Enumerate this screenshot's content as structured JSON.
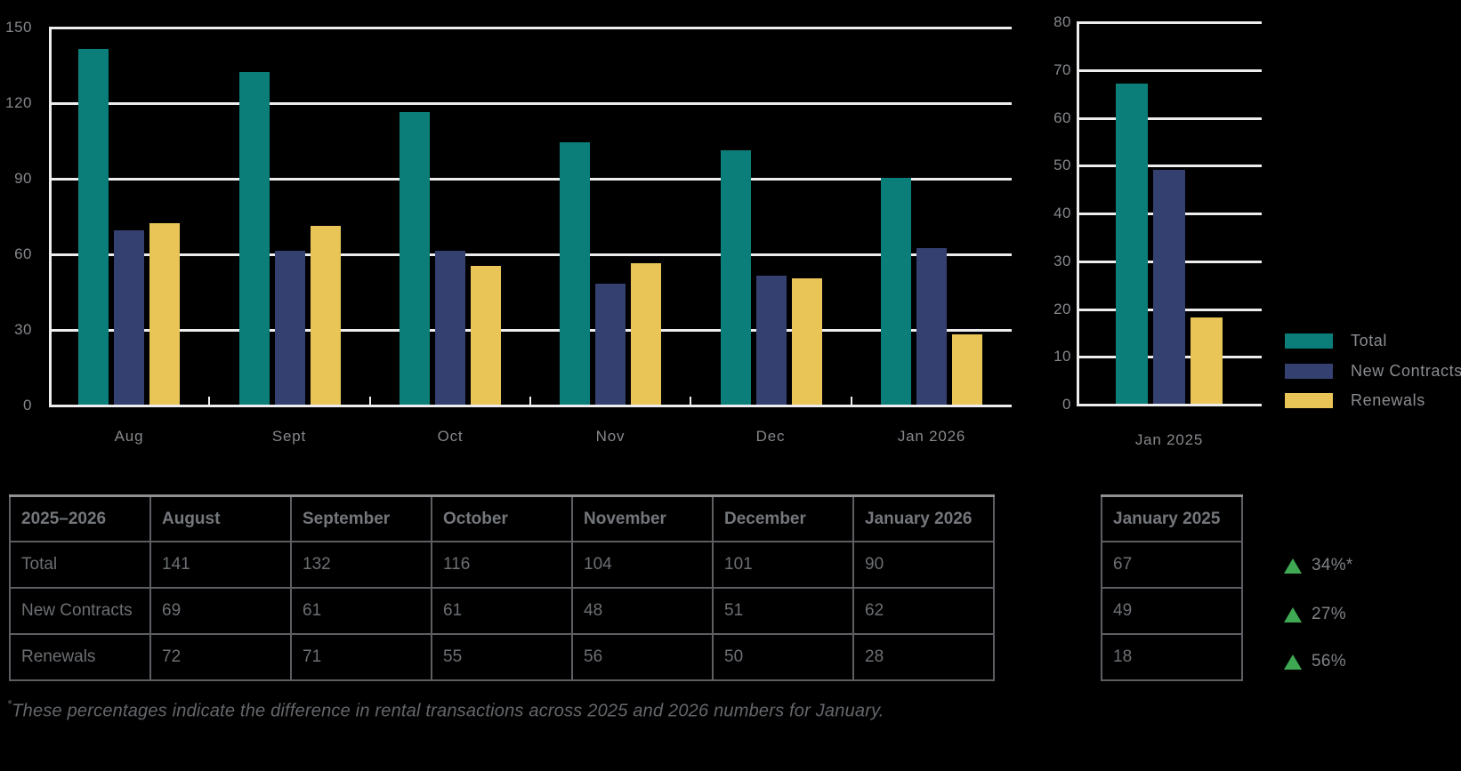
{
  "colors": {
    "total": "#0B7E7A",
    "new_contracts": "#344070",
    "renewals": "#E9C557",
    "grid": "#EDEDEF",
    "axis_text": "#85878B",
    "legend_text": "#8A8C90",
    "table_border": "#5C5E62",
    "table_header_text": "#74777B",
    "table_body_text": "#6C6F73",
    "stat_text": "#7F8286",
    "triangle_green": "#3EA952",
    "footnote_text": "#64676B",
    "background": "#000000"
  },
  "chart_data": [
    {
      "type": "bar",
      "title": "",
      "categories": [
        "Aug",
        "Sept",
        "Oct",
        "Nov",
        "Dec",
        "Jan 2026"
      ],
      "series": [
        {
          "name": "Total",
          "color_key": "total",
          "values": [
            141,
            132,
            116,
            104,
            101,
            90
          ]
        },
        {
          "name": "New Contracts",
          "color_key": "new_contracts",
          "values": [
            69,
            61,
            61,
            48,
            51,
            62
          ]
        },
        {
          "name": "Renewals",
          "color_key": "renewals",
          "values": [
            72,
            71,
            55,
            56,
            50,
            28
          ]
        }
      ],
      "ylim": [
        0,
        150
      ],
      "ystep": 30,
      "ytick_labels": [
        "150",
        "120",
        "90",
        "60",
        "30",
        "0"
      ],
      "grid": true,
      "legend_position": "none"
    },
    {
      "type": "bar",
      "title": "",
      "categories": [
        "Jan 2025"
      ],
      "series": [
        {
          "name": "Total",
          "color_key": "total",
          "values": [
            67
          ]
        },
        {
          "name": "New Contracts",
          "color_key": "new_contracts",
          "values": [
            49
          ]
        },
        {
          "name": "Renewals",
          "color_key": "renewals",
          "values": [
            18
          ]
        }
      ],
      "ylim": [
        0,
        80
      ],
      "ystep": 10,
      "ytick_labels": [
        "80",
        "70",
        "60",
        "50",
        "40",
        "30",
        "20",
        "10",
        "0"
      ],
      "grid": true,
      "legend_position": "right"
    }
  ],
  "legend": {
    "items": [
      {
        "label": "Total",
        "color_key": "total"
      },
      {
        "label": "New Contracts",
        "color_key": "new_contracts"
      },
      {
        "label": "Renewals",
        "color_key": "renewals"
      }
    ]
  },
  "table": {
    "header": [
      "2025–2026",
      "August",
      "September",
      "October",
      "November",
      "December",
      "January 2026"
    ],
    "rows": [
      {
        "label": "Total",
        "values": [
          "141",
          "132",
          "116",
          "104",
          "101",
          "90"
        ]
      },
      {
        "label": "New Contracts",
        "values": [
          "69",
          "61",
          "61",
          "48",
          "51",
          "62"
        ]
      },
      {
        "label": "Renewals",
        "values": [
          "72",
          "71",
          "55",
          "56",
          "50",
          "28"
        ]
      }
    ]
  },
  "side_table": {
    "header": "January 2025",
    "values": [
      "67",
      "49",
      "18"
    ]
  },
  "stats": [
    {
      "icon": "triangle-up-icon",
      "value": "34%*"
    },
    {
      "icon": "triangle-up-icon",
      "value": "27%"
    },
    {
      "icon": "triangle-up-icon",
      "value": "56%"
    }
  ],
  "footnote": {
    "asterisk": "*",
    "text": "These percentages indicate the difference in rental transactions across 2025 and 2026 numbers for January."
  }
}
